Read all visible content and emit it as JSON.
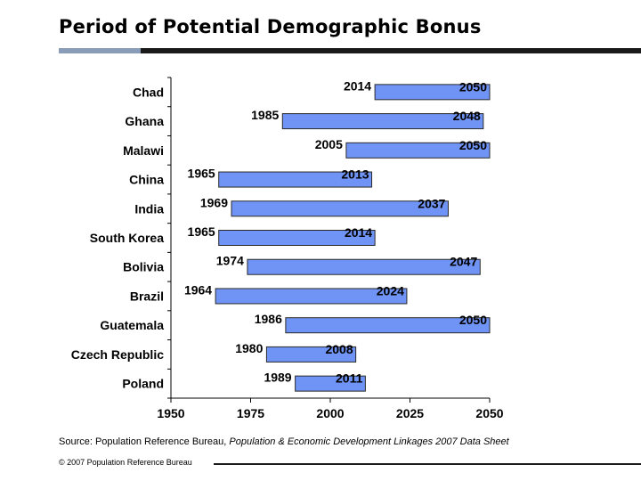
{
  "page": {
    "title": "Period of Potential Demographic Bonus",
    "source_prefix": "Source: Population Reference Bureau, ",
    "source_publication": "Population & Economic Development Linkages 2007 Data Sheet",
    "copyright": "© 2007 Population Reference Bureau"
  },
  "colors": {
    "bar_fill": "#6f94f5",
    "bar_stroke": "#2a2a2a",
    "title_rule": "#1a1a1a",
    "title_rule_accent": "#8a9db8"
  },
  "chart_data": {
    "type": "bar",
    "orientation": "horizontal-range",
    "title": "",
    "xlabel": "",
    "ylabel": "",
    "xlim": [
      1950,
      2050
    ],
    "xticks": [
      1950,
      1975,
      2000,
      2025,
      2050
    ],
    "grid": false,
    "legend": "none",
    "categories": [
      "Chad",
      "Ghana",
      "Malawi",
      "China",
      "India",
      "South Korea",
      "Bolivia",
      "Brazil",
      "Guatemala",
      "Czech Republic",
      "Poland"
    ],
    "series": [
      {
        "start": [
          2014,
          1985,
          2005,
          1965,
          1969,
          1965,
          1974,
          1964,
          1986,
          1980,
          1989
        ],
        "end": [
          2050,
          2048,
          2050,
          2013,
          2037,
          2014,
          2047,
          2024,
          2050,
          2008,
          2011
        ]
      }
    ]
  }
}
